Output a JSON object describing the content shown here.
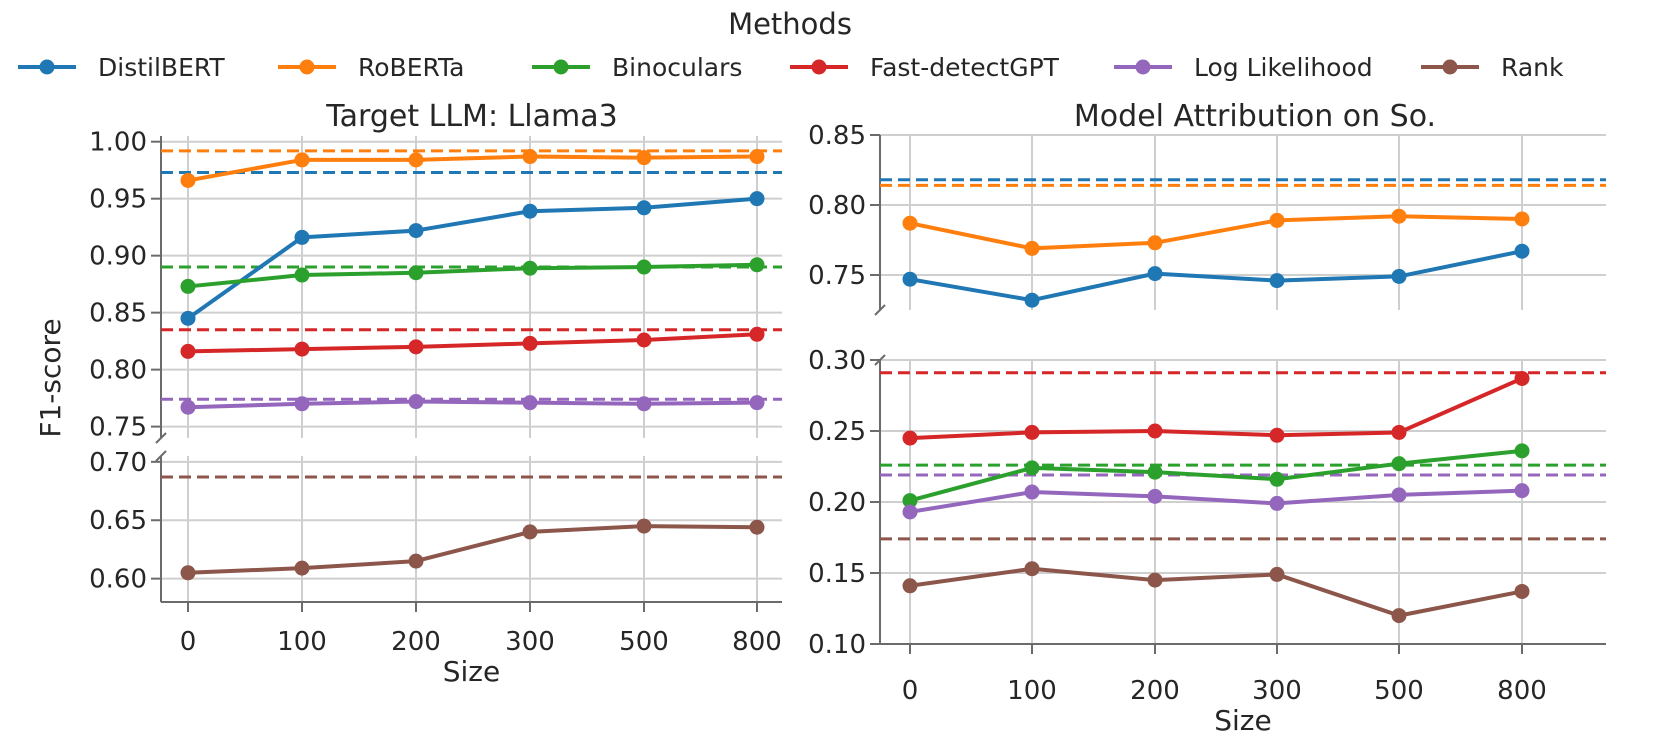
{
  "legend": {
    "title": "Methods",
    "items": [
      {
        "name": "DistilBERT",
        "color": "#1f77b4"
      },
      {
        "name": "RoBERTa",
        "color": "#ff7f0e"
      },
      {
        "name": "Binoculars",
        "color": "#2ca02c"
      },
      {
        "name": "Fast-detectGPT",
        "color": "#d62728"
      },
      {
        "name": "Log Likelihood",
        "color": "#9467bd"
      },
      {
        "name": "Rank",
        "color": "#8c564b"
      }
    ]
  },
  "chart_data": [
    {
      "type": "line",
      "title": "Target LLM: Llama3",
      "xlabel": "Size",
      "ylabel": "F1-score",
      "categories": [
        "0",
        "100",
        "200",
        "300",
        "500",
        "800"
      ],
      "broken_axis": {
        "top": {
          "ylim": [
            0.74,
            1.005
          ],
          "yticks": [
            "0.75",
            "0.80",
            "0.85",
            "0.90",
            "0.95",
            "1.00"
          ]
        },
        "bottom": {
          "ylim": [
            0.58,
            0.705
          ],
          "yticks": [
            "0.60",
            "0.65",
            "0.70"
          ]
        }
      },
      "series": [
        {
          "name": "DistilBERT",
          "values": [
            0.845,
            0.916,
            0.922,
            0.939,
            0.942,
            0.95
          ],
          "baseline": 0.973
        },
        {
          "name": "RoBERTa",
          "values": [
            0.966,
            0.984,
            0.984,
            0.987,
            0.986,
            0.987
          ],
          "baseline": 0.992
        },
        {
          "name": "Binoculars",
          "values": [
            0.873,
            0.883,
            0.885,
            0.889,
            0.89,
            0.892
          ],
          "baseline": 0.89
        },
        {
          "name": "Fast-detectGPT",
          "values": [
            0.816,
            0.818,
            0.82,
            0.823,
            0.826,
            0.831
          ],
          "baseline": 0.835
        },
        {
          "name": "Log Likelihood",
          "values": [
            0.767,
            0.77,
            0.772,
            0.771,
            0.77,
            0.771
          ],
          "baseline": 0.774
        },
        {
          "name": "Rank",
          "values": [
            0.605,
            0.609,
            0.615,
            0.64,
            0.645,
            0.644
          ],
          "baseline": 0.687
        }
      ]
    },
    {
      "type": "line",
      "title": "Model Attribution on So.",
      "xlabel": "Size",
      "ylabel": "",
      "categories": [
        "0",
        "100",
        "200",
        "300",
        "500",
        "800"
      ],
      "broken_axis": {
        "top": {
          "ylim": [
            0.725,
            0.85
          ],
          "yticks": [
            "0.75",
            "0.80",
            "0.85"
          ]
        },
        "bottom": {
          "ylim": [
            0.1,
            0.3
          ],
          "yticks": [
            "0.10",
            "0.15",
            "0.20",
            "0.25",
            "0.30"
          ]
        }
      },
      "series": [
        {
          "name": "DistilBERT",
          "values": [
            0.747,
            0.732,
            0.751,
            0.746,
            0.749,
            0.767
          ],
          "baseline": 0.818
        },
        {
          "name": "RoBERTa",
          "values": [
            0.787,
            0.769,
            0.773,
            0.789,
            0.792,
            0.79
          ],
          "baseline": 0.814
        },
        {
          "name": "Binoculars",
          "values": [
            0.201,
            0.224,
            0.221,
            0.216,
            0.227,
            0.236
          ],
          "baseline": 0.226
        },
        {
          "name": "Fast-detectGPT",
          "values": [
            0.245,
            0.249,
            0.25,
            0.247,
            0.249,
            0.287
          ],
          "baseline": 0.291
        },
        {
          "name": "Log Likelihood",
          "values": [
            0.193,
            0.207,
            0.204,
            0.199,
            0.205,
            0.208
          ],
          "baseline": 0.219
        },
        {
          "name": "Rank",
          "values": [
            0.141,
            0.153,
            0.145,
            0.149,
            0.12,
            0.137
          ],
          "baseline": 0.174
        }
      ]
    }
  ]
}
